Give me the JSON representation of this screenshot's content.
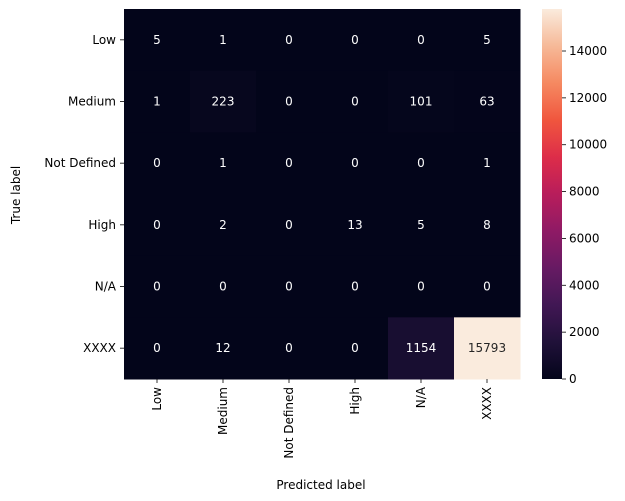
{
  "chart_data": {
    "type": "heatmap",
    "title": "",
    "xlabel": "Predicted label",
    "ylabel": "True label",
    "x_categories": [
      "Low",
      "Medium",
      "Not Defined",
      "High",
      "N/A",
      "XXXX"
    ],
    "y_categories": [
      "Low",
      "Medium",
      "Not Defined",
      "High",
      "N/A",
      "XXXX"
    ],
    "values": [
      [
        5,
        1,
        0,
        0,
        0,
        5
      ],
      [
        1,
        223,
        0,
        0,
        101,
        63
      ],
      [
        0,
        1,
        0,
        0,
        0,
        1
      ],
      [
        0,
        2,
        0,
        13,
        5,
        8
      ],
      [
        0,
        0,
        0,
        0,
        0,
        0
      ],
      [
        0,
        12,
        0,
        0,
        1154,
        15793
      ]
    ],
    "colorbar": {
      "vmin": 0,
      "vmax": 15793,
      "ticks": [
        0,
        2000,
        4000,
        6000,
        8000,
        10000,
        12000,
        14000
      ],
      "colormap": "rocket"
    }
  }
}
